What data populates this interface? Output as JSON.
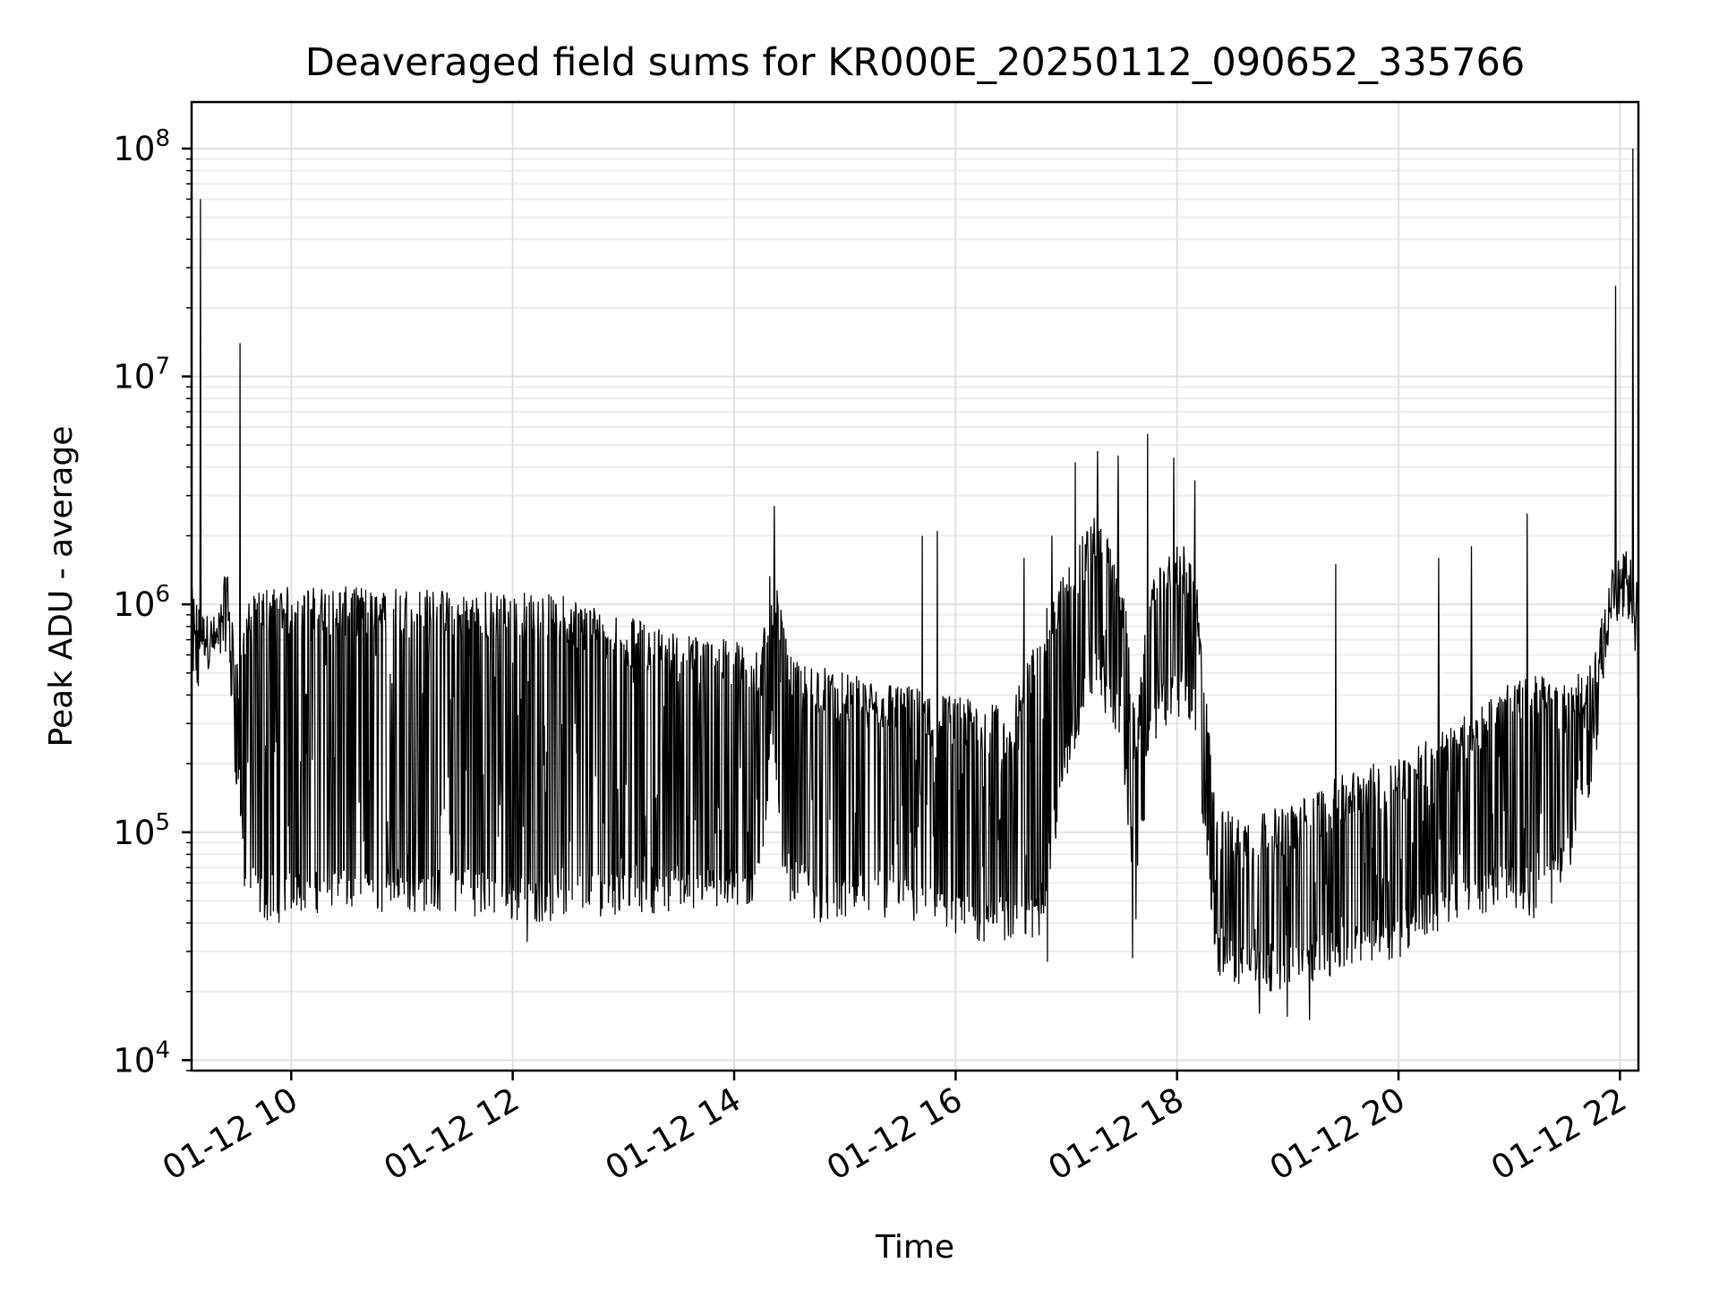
{
  "chart_data": {
    "type": "line",
    "title": "Deaveraged field sums for KR000E_20250112_090652_335766",
    "xlabel": "Time",
    "ylabel": "Peak ADU - average",
    "yscale": "log",
    "ylim": [
      9000,
      160000000
    ],
    "xlim": [
      "2025-01-12T09:06",
      "2025-01-12T22:10"
    ],
    "x_ticks": [
      "2025-01-12T10:00",
      "2025-01-12T12:00",
      "2025-01-12T14:00",
      "2025-01-12T16:00",
      "2025-01-12T18:00",
      "2025-01-12T20:00",
      "2025-01-12T22:00"
    ],
    "x_tick_labels": [
      "01-12 10",
      "01-12 12",
      "01-12 14",
      "01-12 16",
      "01-12 18",
      "01-12 20",
      "01-12 22"
    ],
    "y_ticks": [
      10000,
      100000,
      1000000,
      10000000,
      100000000
    ],
    "y_tick_labels": [
      {
        "base": "10",
        "exp": "4"
      },
      {
        "base": "10",
        "exp": "5"
      },
      {
        "base": "10",
        "exp": "6"
      },
      {
        "base": "10",
        "exp": "7"
      },
      {
        "base": "10",
        "exp": "8"
      }
    ],
    "grid": true,
    "line_color": "#000000",
    "series": [
      {
        "name": "",
        "x": [
          "2025-01-12T09:06",
          "2025-01-12T09:10",
          "2025-01-12T09:15",
          "2025-01-12T09:20",
          "2025-01-12T09:25",
          "2025-01-12T09:30",
          "2025-01-12T09:32",
          "2025-01-12T09:35",
          "2025-01-12T09:45",
          "2025-01-12T09:55",
          "2025-01-12T10:00",
          "2025-01-12T10:30",
          "2025-01-12T11:00",
          "2025-01-12T11:30",
          "2025-01-12T12:00",
          "2025-01-12T12:30",
          "2025-01-12T13:00",
          "2025-01-12T13:30",
          "2025-01-12T14:00",
          "2025-01-12T14:15",
          "2025-01-12T14:20",
          "2025-01-12T14:25",
          "2025-01-12T14:30",
          "2025-01-12T14:35",
          "2025-01-12T14:45",
          "2025-01-12T15:00",
          "2025-01-12T15:30",
          "2025-01-12T16:00",
          "2025-01-12T16:30",
          "2025-01-12T16:45",
          "2025-01-12T17:00",
          "2025-01-12T17:15",
          "2025-01-12T17:30",
          "2025-01-12T17:38",
          "2025-01-12T17:45",
          "2025-01-12T18:00",
          "2025-01-12T18:10",
          "2025-01-12T18:20",
          "2025-01-12T18:30",
          "2025-01-12T19:00",
          "2025-01-12T19:30",
          "2025-01-12T20:00",
          "2025-01-12T20:30",
          "2025-01-12T21:00",
          "2025-01-12T21:15",
          "2025-01-12T21:30",
          "2025-01-12T21:45",
          "2025-01-12T21:55",
          "2025-01-12T22:00",
          "2025-01-12T22:05",
          "2025-01-12T22:10"
        ],
        "typical_high": [
          1200000,
          1000000,
          900000,
          900000,
          1500000,
          700000,
          500000,
          1000000,
          1200000,
          1200000,
          1200000,
          1200000,
          1200000,
          1150000,
          1150000,
          1100000,
          900000,
          750000,
          700000,
          650000,
          1500000,
          1000000,
          600000,
          550000,
          550000,
          500000,
          450000,
          400000,
          350000,
          800000,
          1500000,
          2500000,
          1500000,
          300000,
          1200000,
          2000000,
          1500000,
          150000,
          120000,
          130000,
          180000,
          220000,
          300000,
          450000,
          500000,
          450000,
          550000,
          1500000,
          1600000,
          1800000,
          1200000
        ],
        "typical_low": [
          400000,
          450000,
          600000,
          600000,
          800000,
          200000,
          150000,
          60000,
          50000,
          50000,
          55000,
          55000,
          55000,
          55000,
          50000,
          50000,
          55000,
          55000,
          55000,
          60000,
          300000,
          100000,
          60000,
          60000,
          50000,
          50000,
          50000,
          40000,
          40000,
          40000,
          200000,
          500000,
          300000,
          40000,
          300000,
          400000,
          300000,
          30000,
          25000,
          25000,
          30000,
          35000,
          50000,
          60000,
          50000,
          70000,
          200000,
          900000,
          1000000,
          1000000,
          400000
        ],
        "spikes": [
          {
            "x": "2025-01-12T09:11",
            "y": 60000000
          },
          {
            "x": "2025-01-12T09:32",
            "y": 14000000
          },
          {
            "x": "2025-01-12T14:22",
            "y": 2700000
          },
          {
            "x": "2025-01-12T15:42",
            "y": 2000000
          },
          {
            "x": "2025-01-12T15:50",
            "y": 2100000
          },
          {
            "x": "2025-01-12T16:37",
            "y": 1600000
          },
          {
            "x": "2025-01-12T16:52",
            "y": 2000000
          },
          {
            "x": "2025-01-12T17:05",
            "y": 4200000
          },
          {
            "x": "2025-01-12T17:17",
            "y": 4700000
          },
          {
            "x": "2025-01-12T17:28",
            "y": 4500000
          },
          {
            "x": "2025-01-12T17:44",
            "y": 5600000
          },
          {
            "x": "2025-01-12T17:58",
            "y": 4400000
          },
          {
            "x": "2025-01-12T18:10",
            "y": 3500000
          },
          {
            "x": "2025-01-12T19:26",
            "y": 1500000
          },
          {
            "x": "2025-01-12T20:22",
            "y": 1600000
          },
          {
            "x": "2025-01-12T20:40",
            "y": 1800000
          },
          {
            "x": "2025-01-12T21:10",
            "y": 2500000
          },
          {
            "x": "2025-01-12T21:58",
            "y": 25000000
          },
          {
            "x": "2025-01-12T22:07",
            "y": 100000000
          }
        ],
        "dips": [
          {
            "x": "2025-01-12T17:36",
            "y": 28000
          },
          {
            "x": "2025-01-12T18:45",
            "y": 16000
          },
          {
            "x": "2025-01-12T19:00",
            "y": 15500
          },
          {
            "x": "2025-01-12T19:12",
            "y": 15000
          },
          {
            "x": "2025-01-12T16:50",
            "y": 27000
          },
          {
            "x": "2025-01-12T12:08",
            "y": 33000
          }
        ]
      }
    ]
  }
}
